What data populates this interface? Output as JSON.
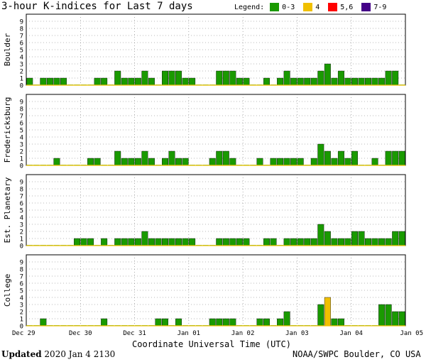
{
  "title": "3-hour K-indices for Last 7 days",
  "legend": {
    "label": "Legend:",
    "entries": [
      {
        "label": "0-3",
        "color": "#1a9a00"
      },
      {
        "label": "4",
        "color": "#f0c000"
      },
      {
        "label": "5,6",
        "color": "#ff0000"
      },
      {
        "label": "7-9",
        "color": "#440088"
      }
    ]
  },
  "chart_data": {
    "type": "bar",
    "x_tick_labels": [
      "Dec 29",
      "Dec 30",
      "Dec 31",
      "Jan 01",
      "Jan 02",
      "Jan 03",
      "Jan 04",
      "Jan 05"
    ],
    "xlabel": "Coordinate Universal Time (UTC)",
    "y_ticks": [
      0,
      1,
      2,
      3,
      4,
      5,
      6,
      7,
      8,
      9
    ],
    "ylim": [
      0,
      9
    ],
    "grid": "horizontal dotted",
    "panels": [
      {
        "station": "Boulder",
        "values": [
          1,
          0,
          1,
          1,
          1,
          1,
          0,
          0,
          0,
          0,
          1,
          1,
          0,
          2,
          1,
          1,
          1,
          2,
          1,
          0,
          2,
          2,
          2,
          1,
          1,
          0,
          0,
          0,
          2,
          2,
          2,
          1,
          1,
          0,
          0,
          1,
          0,
          1,
          2,
          1,
          1,
          1,
          1,
          2,
          3,
          1,
          2,
          1,
          1,
          1,
          1,
          1,
          1,
          2,
          2,
          0
        ]
      },
      {
        "station": "Fredericksburg",
        "values": [
          0,
          0,
          0,
          0,
          1,
          0,
          0,
          0,
          0,
          1,
          1,
          0,
          0,
          2,
          1,
          1,
          1,
          2,
          1,
          0,
          1,
          2,
          1,
          1,
          0,
          0,
          0,
          1,
          2,
          2,
          1,
          0,
          0,
          0,
          1,
          0,
          1,
          1,
          1,
          1,
          1,
          0,
          1,
          3,
          2,
          1,
          2,
          1,
          2,
          0,
          0,
          1,
          0,
          2,
          2,
          2
        ]
      },
      {
        "station": "Est. Planetary",
        "values": [
          0,
          0,
          0,
          0,
          0,
          0,
          0,
          1,
          1,
          1,
          0,
          1,
          0,
          1,
          1,
          1,
          1,
          2,
          1,
          1,
          1,
          1,
          1,
          1,
          1,
          0,
          0,
          0,
          1,
          1,
          1,
          1,
          1,
          0,
          0,
          1,
          1,
          0,
          1,
          1,
          1,
          1,
          1,
          3,
          2,
          1,
          1,
          1,
          2,
          2,
          1,
          1,
          1,
          1,
          2,
          2
        ]
      },
      {
        "station": "College",
        "values": [
          0,
          0,
          1,
          0,
          0,
          0,
          0,
          0,
          0,
          0,
          0,
          1,
          0,
          0,
          0,
          0,
          0,
          0,
          0,
          1,
          1,
          0,
          1,
          0,
          0,
          0,
          0,
          1,
          1,
          1,
          1,
          0,
          0,
          0,
          1,
          1,
          0,
          1,
          2,
          0,
          0,
          0,
          0,
          3,
          4,
          1,
          1,
          0,
          0,
          0,
          0,
          0,
          3,
          3,
          2,
          2
        ]
      }
    ]
  },
  "footer": {
    "updated_label": "Updated",
    "updated_value": "2020 Jan  4 2130",
    "source": "NOAA/SWPC Boulder, CO USA"
  }
}
